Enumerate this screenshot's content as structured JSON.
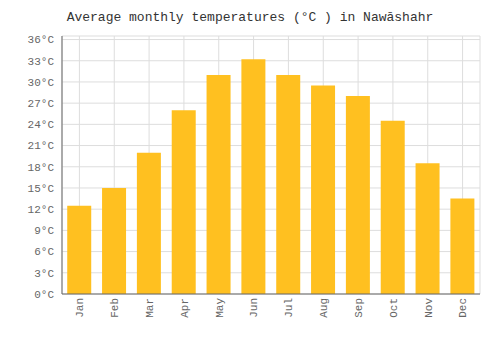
{
  "chart_data": {
    "type": "bar",
    "title": "Average monthly temperatures (°C ) in Nawāshahr",
    "categories": [
      "Jan",
      "Feb",
      "Mar",
      "Apr",
      "May",
      "Jun",
      "Jul",
      "Aug",
      "Sep",
      "Oct",
      "Nov",
      "Dec"
    ],
    "values": [
      12.5,
      15.0,
      20.0,
      26.0,
      31.0,
      33.2,
      31.0,
      29.5,
      28.0,
      24.5,
      18.5,
      13.5
    ],
    "color": "#FFC020",
    "ylim": [
      0,
      36.5
    ],
    "yticks": [
      {
        "value": 0,
        "label": "0°C"
      },
      {
        "value": 3,
        "label": "3°C"
      },
      {
        "value": 6,
        "label": "6°C"
      },
      {
        "value": 9,
        "label": "9°C"
      },
      {
        "value": 12,
        "label": "12°C"
      },
      {
        "value": 15,
        "label": "15°C"
      },
      {
        "value": 18,
        "label": "18°C"
      },
      {
        "value": 21,
        "label": "21°C"
      },
      {
        "value": 24,
        "label": "24°C"
      },
      {
        "value": 27,
        "label": "27°C"
      },
      {
        "value": 30,
        "label": "30°C"
      },
      {
        "value": 33,
        "label": "33°C"
      },
      {
        "value": 36,
        "label": "36°C"
      }
    ],
    "grid": true
  }
}
